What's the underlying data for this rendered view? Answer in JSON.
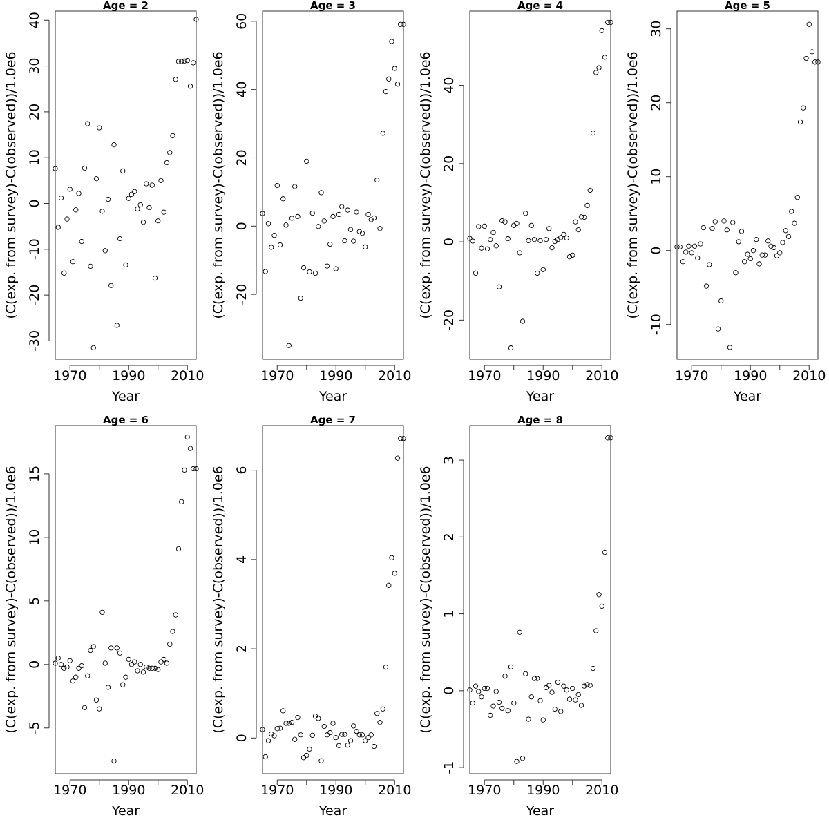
{
  "figure": {
    "xlabel": "Year",
    "ylabel": "(C(exp. from survey)-C(observed))/1.0e6"
  },
  "chart_data": [
    {
      "type": "scatter",
      "title": "Age = 2",
      "xlabel": "Year",
      "ylabel": "(C(exp. from survey)-C(observed))/1.0e6",
      "xlim": [
        1965,
        2013
      ],
      "ylim": [
        -34,
        42
      ],
      "xticks": [
        1970,
        1990,
        2010
      ],
      "yticks": [
        -30,
        -20,
        -10,
        0,
        10,
        20,
        30,
        40
      ],
      "x": [
        1965,
        1966,
        1967,
        1968,
        1969,
        1970,
        1971,
        1972,
        1973,
        1974,
        1975,
        1976,
        1977,
        1978,
        1979,
        1980,
        1981,
        1982,
        1983,
        1984,
        1985,
        1986,
        1987,
        1988,
        1989,
        1990,
        1991,
        1992,
        1993,
        1994,
        1995,
        1996,
        1997,
        1998,
        1999,
        2000,
        2001,
        2002,
        2003,
        2004,
        2005,
        2006,
        2007,
        2008,
        2009,
        2010,
        2011,
        2012,
        2013
      ],
      "y": [
        7.6,
        -5.2,
        1.2,
        -15.2,
        -3.4,
        3.1,
        -12.7,
        -1.4,
        2.2,
        -8.3,
        7.7,
        17.4,
        -13.7,
        -31.5,
        5.4,
        16.5,
        -1.7,
        -10.3,
        0.9,
        -17.9,
        12.8,
        -26.6,
        -7.7,
        7.1,
        -13.4,
        1.1,
        2.0,
        2.6,
        -1.2,
        -0.3,
        -4.1,
        4.3,
        -0.9,
        4.0,
        -16.3,
        -3.8,
        5.0,
        -1.9,
        8.9,
        11.1,
        14.8,
        27.1,
        31.0,
        31.0,
        31.1,
        31.2,
        25.6,
        30.7,
        40.2
      ]
    },
    {
      "type": "scatter",
      "title": "Age = 3",
      "xlabel": "Year",
      "ylabel": "(C(exp. from survey)-C(observed))/1.0e6",
      "xlim": [
        1965,
        2013
      ],
      "ylim": [
        -39,
        63
      ],
      "xticks": [
        1970,
        1990,
        2010
      ],
      "yticks": [
        -20,
        0,
        20,
        40,
        60
      ],
      "x": [
        1965,
        1966,
        1967,
        1968,
        1969,
        1970,
        1971,
        1972,
        1973,
        1974,
        1975,
        1976,
        1977,
        1978,
        1979,
        1980,
        1981,
        1982,
        1983,
        1984,
        1985,
        1986,
        1987,
        1988,
        1989,
        1990,
        1991,
        1992,
        1993,
        1994,
        1995,
        1996,
        1997,
        1998,
        1999,
        2000,
        2001,
        2002,
        2003,
        2004,
        2005,
        2006,
        2007,
        2008,
        2009,
        2010,
        2011,
        2012,
        2013
      ],
      "y": [
        3.7,
        -13.3,
        0.7,
        -6.2,
        -2.7,
        11.9,
        -5.5,
        8.0,
        0.3,
        -35.0,
        2.3,
        11.6,
        2.8,
        -21.1,
        -12.2,
        19.0,
        -13.4,
        3.8,
        -13.8,
        -0.1,
        9.8,
        1.5,
        -11.7,
        -5.3,
        2.8,
        -12.5,
        3.4,
        5.7,
        -4.3,
        4.7,
        -1.0,
        -4.4,
        4.1,
        -1.6,
        -2.1,
        -6.1,
        3.4,
        1.9,
        2.4,
        13.5,
        -0.7,
        27.2,
        39.4,
        43.1,
        54.1,
        46.2,
        41.6,
        59.1,
        59.1
      ]
    },
    {
      "type": "scatter",
      "title": "Age = 4",
      "xlabel": "Year",
      "ylabel": "(C(exp. from survey)-C(observed))/1.0e6",
      "xlim": [
        1965,
        2013
      ],
      "ylim": [
        -30,
        59
      ],
      "xticks": [
        1970,
        1990,
        2010
      ],
      "yticks": [
        -20,
        0,
        20,
        40
      ],
      "x": [
        1965,
        1966,
        1967,
        1968,
        1969,
        1970,
        1971,
        1972,
        1973,
        1974,
        1975,
        1976,
        1977,
        1978,
        1979,
        1980,
        1981,
        1982,
        1983,
        1984,
        1985,
        1986,
        1987,
        1988,
        1989,
        1990,
        1991,
        1992,
        1993,
        1994,
        1995,
        1996,
        1997,
        1998,
        1999,
        2000,
        2001,
        2002,
        2003,
        2004,
        2005,
        2006,
        2007,
        2008,
        2009,
        2010,
        2011,
        2012,
        2013
      ],
      "y": [
        0.9,
        0.2,
        -8.0,
        3.9,
        -1.6,
        4.0,
        -1.8,
        0.6,
        2.4,
        -1.0,
        -11.5,
        5.4,
        5.1,
        0.8,
        -27.1,
        4.2,
        4.7,
        -2.8,
        -20.3,
        7.3,
        0.3,
        4.2,
        0.6,
        -8.0,
        0.3,
        -7.1,
        0.6,
        3.4,
        -1.5,
        0.1,
        0.6,
        1.1,
        1.9,
        1.0,
        -3.8,
        -3.4,
        5.1,
        3.1,
        6.4,
        6.3,
        9.3,
        13.2,
        27.8,
        43.3,
        44.5,
        54.0,
        47.2,
        56.1,
        56.1
      ]
    },
    {
      "type": "scatter",
      "title": "Age = 5",
      "xlabel": "Year",
      "ylabel": "(C(exp. from survey)-C(observed))/1.0e6",
      "xlim": [
        1965,
        2013
      ],
      "ylim": [
        -14.7,
        32.4
      ],
      "xticks": [
        1970,
        1990,
        2010
      ],
      "yticks": [
        -10,
        0,
        10,
        20,
        30
      ],
      "x": [
        1965,
        1966,
        1967,
        1968,
        1969,
        1970,
        1971,
        1972,
        1973,
        1974,
        1975,
        1976,
        1977,
        1978,
        1979,
        1980,
        1981,
        1982,
        1983,
        1984,
        1985,
        1986,
        1987,
        1988,
        1989,
        1990,
        1991,
        1992,
        1993,
        1994,
        1995,
        1996,
        1997,
        1998,
        1999,
        2000,
        2001,
        2002,
        2003,
        2004,
        2005,
        2006,
        2007,
        2008,
        2009,
        2010,
        2011,
        2012,
        2013
      ],
      "y": [
        0.5,
        0.5,
        -1.5,
        -0.2,
        0.6,
        -0.3,
        0.6,
        -1.0,
        0.9,
        3.1,
        -4.8,
        -1.9,
        3.0,
        3.9,
        -10.6,
        -6.8,
        4.0,
        2.8,
        -13.1,
        3.8,
        -3.0,
        1.2,
        2.6,
        -1.5,
        -0.5,
        -1.1,
        0.0,
        1.5,
        -1.8,
        -0.6,
        -0.6,
        1.3,
        0.6,
        0.4,
        -0.7,
        -0.3,
        1.1,
        2.7,
        1.9,
        5.3,
        3.7,
        7.2,
        17.4,
        19.3,
        26.0,
        30.6,
        26.9,
        25.5,
        25.5
      ]
    },
    {
      "type": "scatter",
      "title": "Age = 6",
      "xlabel": "Year",
      "ylabel": "(C(exp. from survey)-C(observed))/1.0e6",
      "xlim": [
        1965,
        2013
      ],
      "ylim": [
        -8.6,
        18.8
      ],
      "xticks": [
        1970,
        1990,
        2010
      ],
      "yticks": [
        -5,
        0,
        5,
        10,
        15
      ],
      "x": [
        1965,
        1966,
        1967,
        1968,
        1969,
        1970,
        1971,
        1972,
        1973,
        1974,
        1975,
        1976,
        1977,
        1978,
        1979,
        1980,
        1981,
        1982,
        1983,
        1984,
        1985,
        1986,
        1987,
        1988,
        1989,
        1990,
        1991,
        1992,
        1993,
        1994,
        1995,
        1996,
        1997,
        1998,
        1999,
        2000,
        2001,
        2002,
        2003,
        2004,
        2005,
        2006,
        2007,
        2008,
        2009,
        2010,
        2011,
        2012,
        2013
      ],
      "y": [
        0.1,
        0.5,
        0.0,
        -0.3,
        -0.2,
        0.3,
        -1.3,
        -1.0,
        -0.3,
        -0.1,
        -3.4,
        -0.9,
        1.1,
        1.4,
        -2.8,
        -3.5,
        4.1,
        0.1,
        -1.8,
        1.3,
        -7.6,
        1.3,
        0.9,
        -1.6,
        -1.0,
        0.4,
        0.0,
        0.2,
        -0.5,
        0.0,
        -0.6,
        -0.2,
        -0.3,
        -0.3,
        -0.3,
        -0.4,
        0.2,
        0.4,
        0.1,
        1.6,
        2.6,
        3.9,
        9.1,
        12.8,
        15.3,
        17.9,
        17.0,
        15.4,
        15.4
      ]
    },
    {
      "type": "scatter",
      "title": "Age = 7",
      "xlabel": "Year",
      "ylabel": "(C(exp. from survey)-C(observed))/1.0e6",
      "xlim": [
        1965,
        2013
      ],
      "ylim": [
        -0.8,
        7.0
      ],
      "xticks": [
        1970,
        1990,
        2010
      ],
      "yticks": [
        0,
        2,
        4,
        6
      ],
      "x": [
        1965,
        1966,
        1967,
        1968,
        1969,
        1970,
        1971,
        1972,
        1973,
        1974,
        1975,
        1976,
        1977,
        1978,
        1979,
        1980,
        1981,
        1982,
        1983,
        1984,
        1985,
        1986,
        1987,
        1988,
        1989,
        1990,
        1991,
        1992,
        1993,
        1994,
        1995,
        1996,
        1997,
        1998,
        1999,
        2000,
        2001,
        2002,
        2003,
        2004,
        2005,
        2006,
        2007,
        2008,
        2009,
        2010,
        2011,
        2012,
        2013
      ],
      "y": [
        0.19,
        -0.42,
        -0.06,
        0.09,
        0.05,
        0.21,
        0.22,
        0.61,
        0.33,
        0.33,
        0.35,
        -0.03,
        0.46,
        0.07,
        -0.44,
        -0.39,
        -0.25,
        0.06,
        0.49,
        0.44,
        -0.51,
        0.26,
        0.07,
        0.12,
        0.33,
        0.01,
        -0.17,
        0.08,
        0.08,
        -0.16,
        -0.06,
        0.27,
        0.15,
        0.07,
        0.07,
        -0.06,
        0.01,
        0.07,
        -0.19,
        0.55,
        0.35,
        0.65,
        1.59,
        3.42,
        4.04,
        3.69,
        6.27,
        6.71,
        6.71
      ]
    },
    {
      "type": "scatter",
      "title": "Age = 8",
      "xlabel": "Year",
      "ylabel": "(C(exp. from survey)-C(observed))/1.0e6",
      "xlim": [
        1965,
        2013
      ],
      "ylim": [
        -1.08,
        3.45
      ],
      "xticks": [
        1970,
        1990,
        2010
      ],
      "yticks": [
        -1,
        0,
        1,
        2,
        3
      ],
      "x": [
        1965,
        1966,
        1967,
        1968,
        1969,
        1970,
        1971,
        1972,
        1973,
        1974,
        1975,
        1976,
        1977,
        1978,
        1979,
        1980,
        1981,
        1982,
        1983,
        1984,
        1985,
        1986,
        1987,
        1988,
        1989,
        1990,
        1991,
        1992,
        1993,
        1994,
        1995,
        1996,
        1997,
        1998,
        1999,
        2000,
        2001,
        2002,
        2003,
        2004,
        2005,
        2006,
        2007,
        2008,
        2009,
        2010,
        2011,
        2012,
        2013
      ],
      "y": [
        0.01,
        -0.16,
        0.06,
        -0.01,
        -0.08,
        0.03,
        0.03,
        -0.32,
        -0.2,
        -0.01,
        -0.15,
        -0.23,
        0.19,
        -0.26,
        0.31,
        -0.16,
        -0.92,
        0.76,
        -0.88,
        0.22,
        -0.37,
        -0.08,
        0.16,
        0.16,
        -0.13,
        -0.38,
        0.04,
        0.07,
        -0.02,
        -0.24,
        0.11,
        -0.27,
        0.06,
        0.01,
        -0.11,
        0.03,
        -0.12,
        -0.05,
        -0.19,
        0.06,
        0.08,
        0.07,
        0.29,
        0.78,
        1.25,
        1.1,
        1.8,
        3.29,
        3.29
      ]
    }
  ]
}
